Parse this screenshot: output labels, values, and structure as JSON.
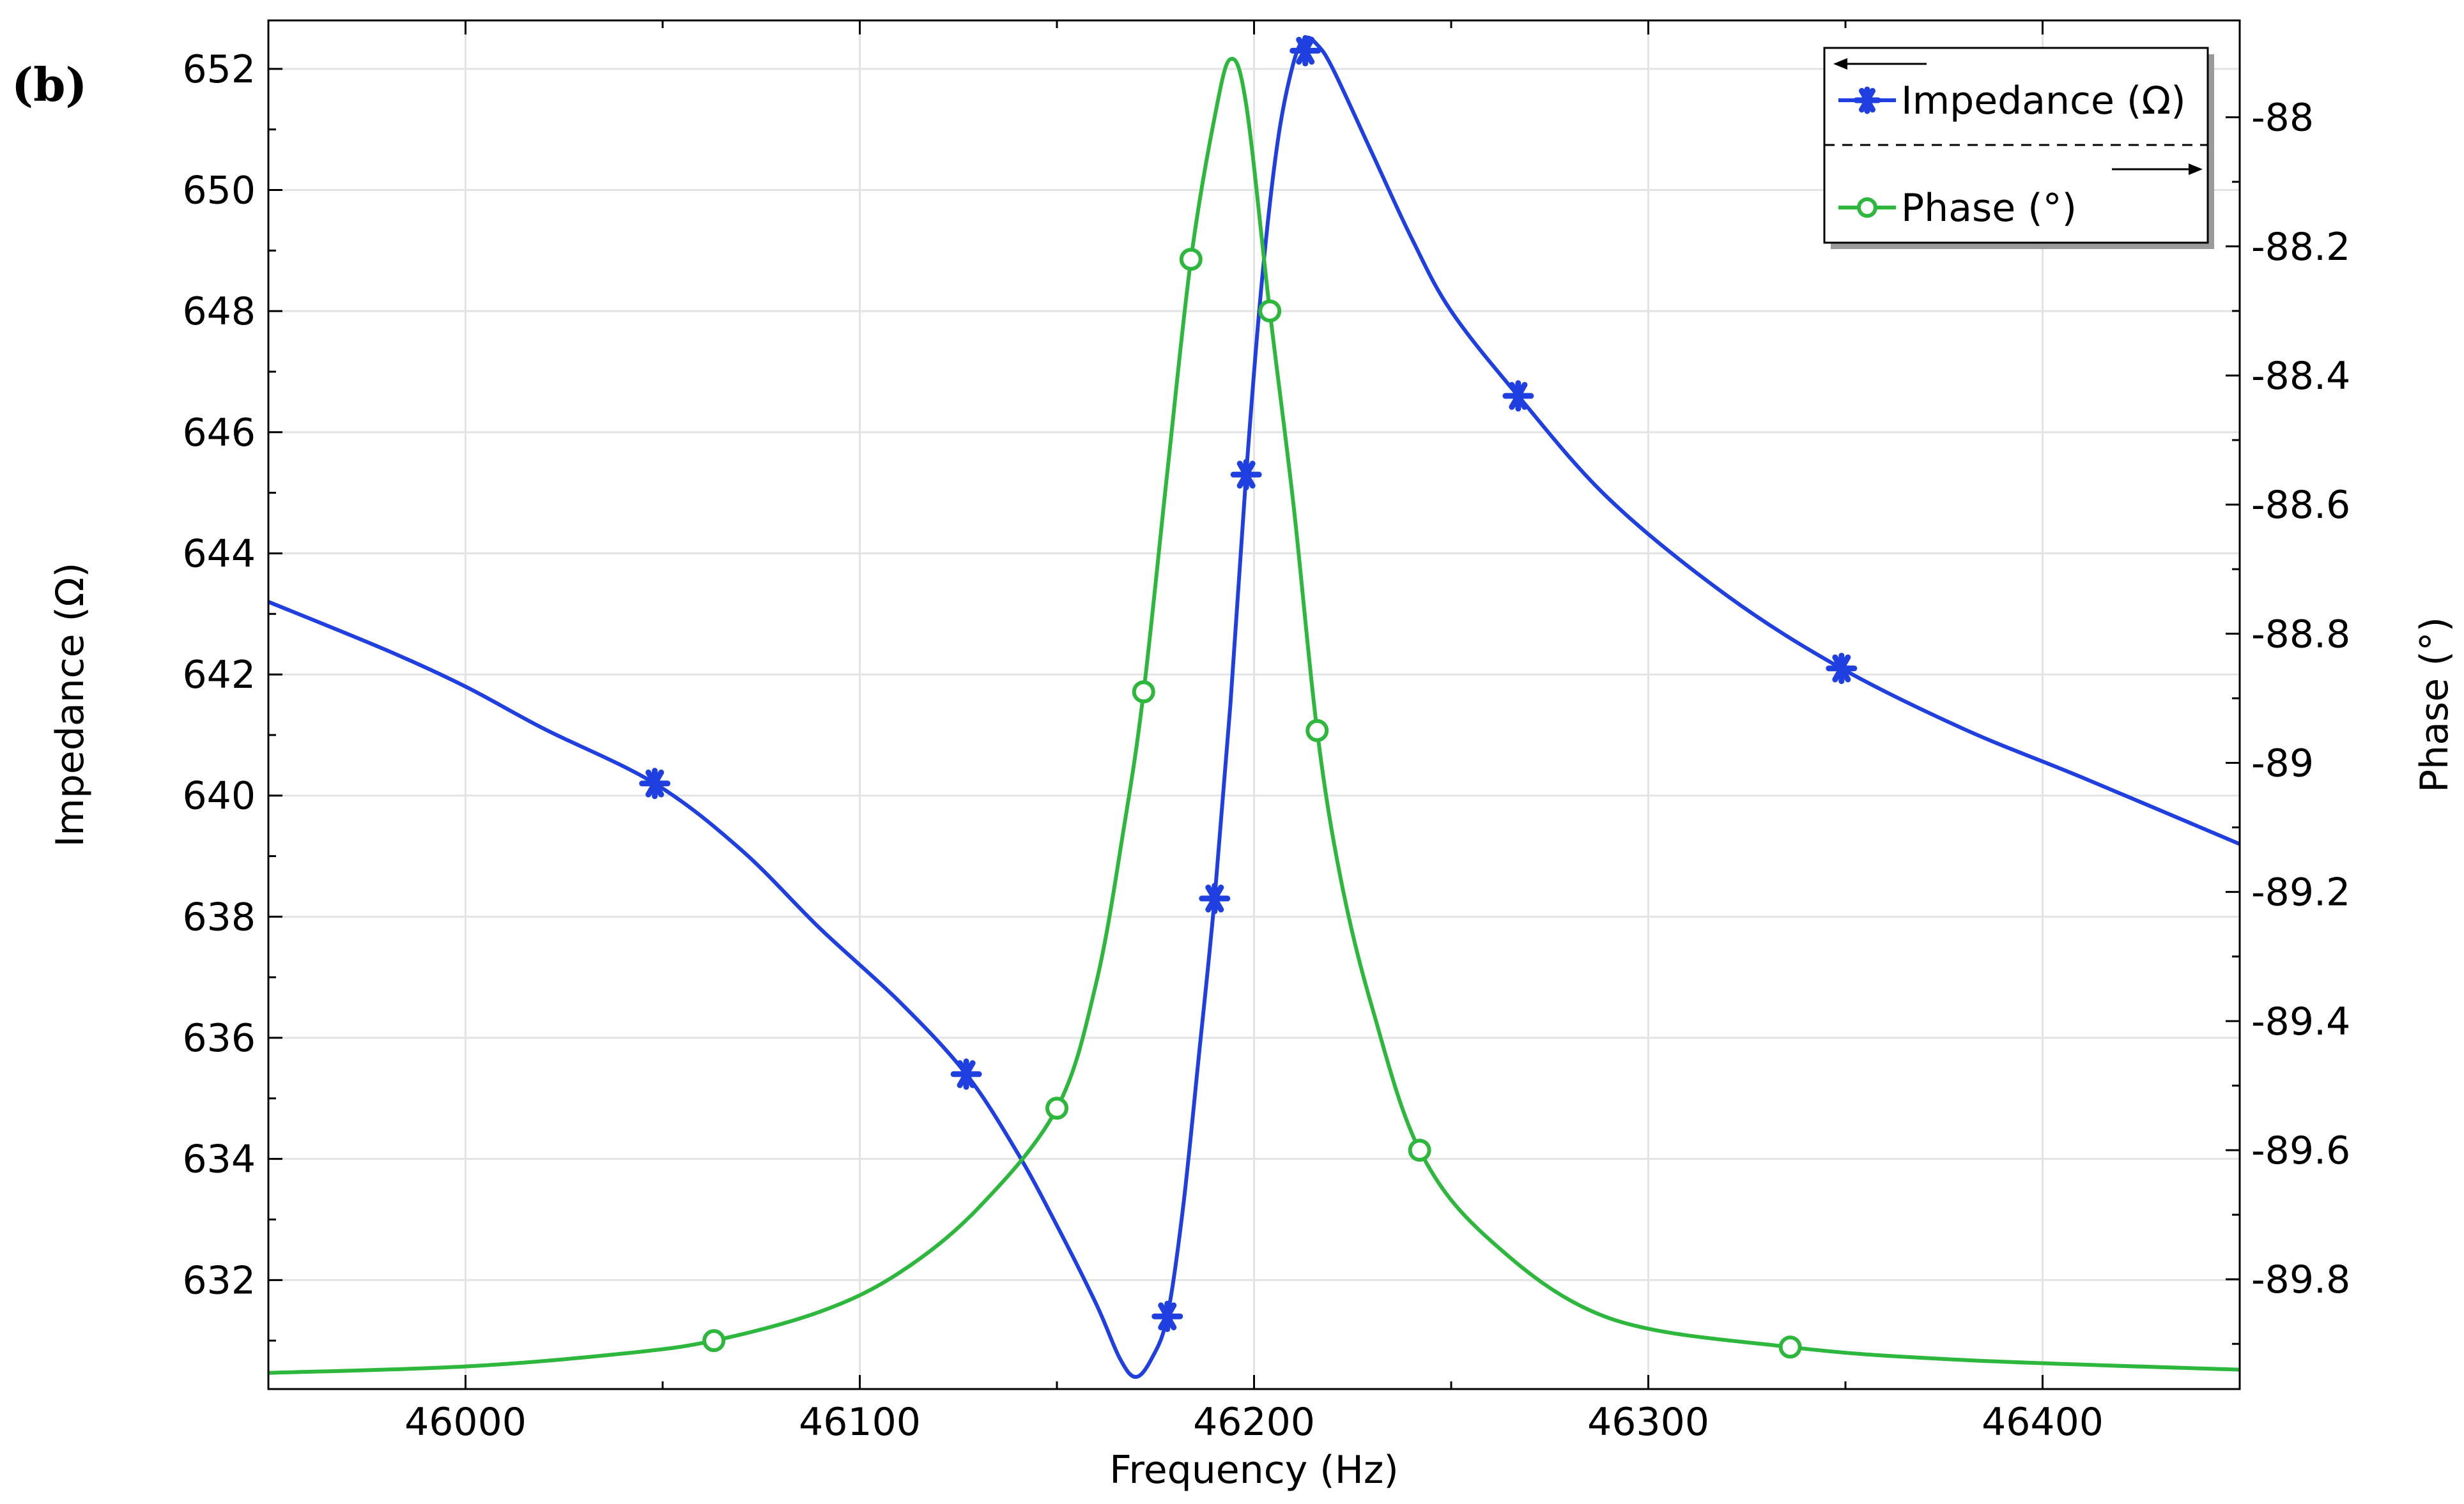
{
  "panel_label": "(b)",
  "colors": {
    "impedance": "#1f3fe0",
    "phase": "#2db83d",
    "grid": "#e3e3e3",
    "axis": "#000000"
  },
  "chart_data": {
    "type": "line",
    "xlabel": "Frequency (Hz)",
    "ylabel_left": "Impedance (Ω)",
    "ylabel_right": "Phase (°)",
    "xlim": [
      45950,
      46450
    ],
    "ylim_left": [
      630.2,
      652.8
    ],
    "ylim_right": [
      -89.97,
      -87.85
    ],
    "x_ticks": [
      46000,
      46100,
      46200,
      46300,
      46400
    ],
    "x_tick_labels": [
      "46000",
      "46100",
      "46200",
      "46300",
      "46400"
    ],
    "y_left_ticks": [
      632,
      634,
      636,
      638,
      640,
      642,
      644,
      646,
      648,
      650,
      652
    ],
    "y_left_tick_labels": [
      "632",
      "634",
      "636",
      "638",
      "640",
      "642",
      "644",
      "646",
      "648",
      "650",
      "652"
    ],
    "y_right_ticks": [
      -89.8,
      -89.6,
      -89.4,
      -89.2,
      -89,
      -88.8,
      -88.6,
      -88.4,
      -88.2,
      -88
    ],
    "y_right_tick_labels": [
      "-89.8",
      "-89.6",
      "-89.4",
      "-89.2",
      "-89",
      "-88.8",
      "-88.6",
      "-88.4",
      "-88.2",
      "-88"
    ],
    "grid": true,
    "legend_position": "top-right",
    "series": [
      {
        "name": "Impedance (Ω)",
        "axis": "left",
        "marker": "asterisk",
        "x": [
          45950,
          45980,
          46000,
          46020,
          46048,
          46070,
          46090,
          46110,
          46127,
          46140,
          46150,
          46160,
          46166,
          46170,
          46174,
          46178,
          46182,
          46186,
          46190,
          46194,
          46198,
          46202,
          46206,
          46210,
          46213,
          46216,
          46220,
          46230,
          46240,
          46250,
          46267,
          46290,
          46320,
          46349,
          46380,
          46410,
          46450
        ],
        "y": [
          643.2,
          642.4,
          641.8,
          641.1,
          640.2,
          639.1,
          637.8,
          636.6,
          635.4,
          634.1,
          632.9,
          631.6,
          630.7,
          630.4,
          630.7,
          631.4,
          633.2,
          635.7,
          638.3,
          641.5,
          645.3,
          648.5,
          650.8,
          652.1,
          652.5,
          652.4,
          652.0,
          650.6,
          649.2,
          648.0,
          646.6,
          644.9,
          643.3,
          642.1,
          641.1,
          640.3,
          639.2
        ],
        "markers_x": [
          46048,
          46127,
          46178,
          46190,
          46198,
          46213,
          46267,
          46349
        ],
        "markers_y": [
          640.2,
          635.4,
          631.4,
          638.3,
          645.3,
          652.3,
          646.6,
          642.1
        ]
      },
      {
        "name": "Phase (°)",
        "axis": "right",
        "marker": "circle",
        "x": [
          45950,
          46000,
          46040,
          46063,
          46090,
          46110,
          46130,
          46150,
          46160,
          46167,
          46172,
          46178,
          46184,
          46190,
          46194,
          46198,
          46204,
          46210,
          46216,
          46222,
          46230,
          46242,
          46260,
          46290,
          46336,
          46380,
          46450
        ],
        "y": [
          -89.945,
          -89.935,
          -89.915,
          -89.895,
          -89.85,
          -89.79,
          -89.69,
          -89.535,
          -89.34,
          -89.1,
          -88.89,
          -88.55,
          -88.22,
          -88.0,
          -87.91,
          -87.98,
          -88.3,
          -88.6,
          -88.95,
          -89.18,
          -89.38,
          -89.6,
          -89.74,
          -89.86,
          -89.905,
          -89.925,
          -89.94
        ],
        "markers_x": [
          46063,
          46150,
          46172,
          46184,
          46204,
          46216,
          46242,
          46336
        ],
        "markers_y": [
          -89.895,
          -89.535,
          -88.89,
          -88.22,
          -88.3,
          -88.95,
          -89.6,
          -89.905
        ]
      }
    ]
  }
}
